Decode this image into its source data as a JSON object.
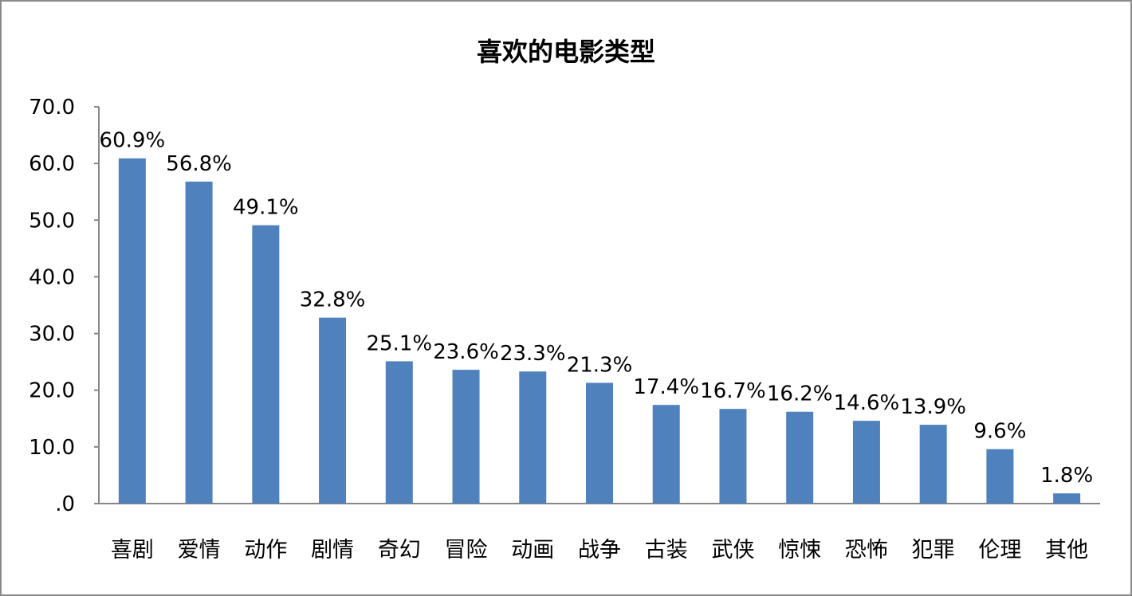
{
  "chart_data": {
    "type": "bar",
    "title": "喜欢的电影类型",
    "xlabel": "",
    "ylabel": "",
    "categories": [
      "喜剧",
      "爱情",
      "动作",
      "剧情",
      "奇幻",
      "冒险",
      "动画",
      "战争",
      "古装",
      "武侠",
      "惊悚",
      "恐怖",
      "犯罪",
      "伦理",
      "其他"
    ],
    "values": [
      60.9,
      56.8,
      49.1,
      32.8,
      25.1,
      23.6,
      23.3,
      21.3,
      17.4,
      16.7,
      16.2,
      14.6,
      13.9,
      9.6,
      1.8
    ],
    "data_labels": [
      "60.9%",
      "56.8%",
      "49.1%",
      "32.8%",
      "25.1%",
      "23.6%",
      "23.3%",
      "21.3%",
      "17.4%",
      "16.7%",
      "16.2%",
      "14.6%",
      "13.9%",
      "9.6%",
      "1.8%"
    ],
    "ylim": [
      0,
      70
    ],
    "yticks": [
      ".0",
      "10.0",
      "20.0",
      "30.0",
      "40.0",
      "50.0",
      "60.0",
      "70.0"
    ],
    "grid": false,
    "legend": "none",
    "bar_color": "#4f81bd",
    "axis_color": "#868686"
  }
}
